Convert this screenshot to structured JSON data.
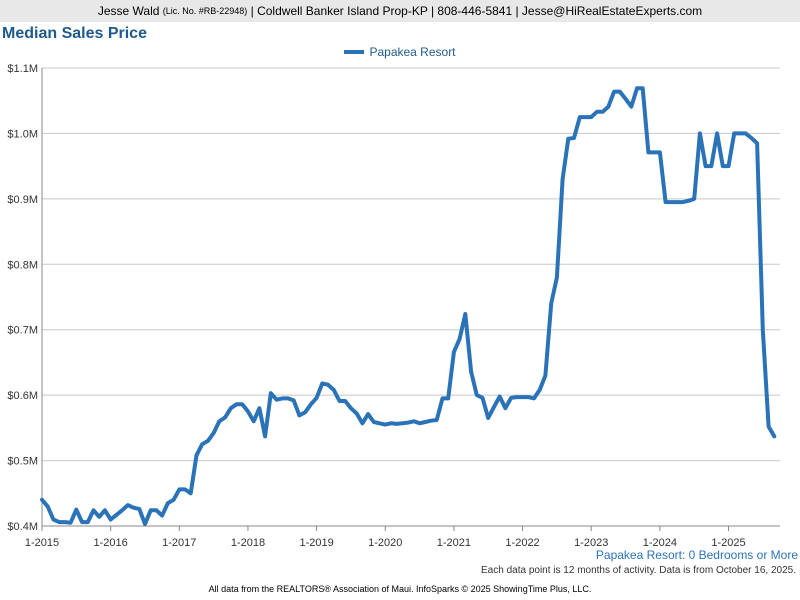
{
  "header": {
    "agent_name": "Jesse Wald",
    "license": "(Lic. No. #RB-22948)",
    "details": "| Coldwell Banker Island Prop-KP | 808-446-5841 | Jesse@HiRealEstateExperts.com"
  },
  "colors": {
    "series": "#2a73b8",
    "title": "#1f5a8c"
  },
  "chart_data": {
    "type": "line",
    "title": "Median Sales Price",
    "subtitle": "Papakea Resort: 0 Bedrooms or More",
    "legend_position": "top-center",
    "grid": true,
    "ylim": [
      400000,
      1100000
    ],
    "yticks": [
      {
        "value": 400000,
        "label": "$0.4M"
      },
      {
        "value": 500000,
        "label": "$0.5M"
      },
      {
        "value": 600000,
        "label": "$0.6M"
      },
      {
        "value": 700000,
        "label": "$0.7M"
      },
      {
        "value": 800000,
        "label": "$0.8M"
      },
      {
        "value": 900000,
        "label": "$0.9M"
      },
      {
        "value": 1000000,
        "label": "$1.0M"
      },
      {
        "value": 1100000,
        "label": "$1.1M"
      }
    ],
    "xlim": [
      "2015-01",
      "2025-10"
    ],
    "xticks": [
      "1-2015",
      "1-2016",
      "1-2017",
      "1-2018",
      "1-2019",
      "1-2020",
      "1-2021",
      "1-2022",
      "1-2023",
      "1-2024",
      "1-2025"
    ],
    "series": [
      {
        "name": "Papakea Resort",
        "points": [
          [
            "2015-01",
            440000
          ],
          [
            "2015-02",
            430000
          ],
          [
            "2015-03",
            410000
          ],
          [
            "2015-04",
            406000
          ],
          [
            "2015-05",
            406000
          ],
          [
            "2015-06",
            405000
          ],
          [
            "2015-07",
            425000
          ],
          [
            "2015-08",
            406000
          ],
          [
            "2015-09",
            406000
          ],
          [
            "2015-10",
            424000
          ],
          [
            "2015-11",
            414000
          ],
          [
            "2015-12",
            424000
          ],
          [
            "2016-01",
            410000
          ],
          [
            "2016-02",
            417000
          ],
          [
            "2016-03",
            424000
          ],
          [
            "2016-04",
            432000
          ],
          [
            "2016-05",
            428000
          ],
          [
            "2016-06",
            426000
          ],
          [
            "2016-07",
            403000
          ],
          [
            "2016-08",
            424000
          ],
          [
            "2016-09",
            424000
          ],
          [
            "2016-10",
            416000
          ],
          [
            "2016-11",
            435000
          ],
          [
            "2016-12",
            440000
          ],
          [
            "2017-01",
            456000
          ],
          [
            "2017-02",
            456000
          ],
          [
            "2017-03",
            450000
          ],
          [
            "2017-04",
            508000
          ],
          [
            "2017-05",
            525000
          ],
          [
            "2017-06",
            530000
          ],
          [
            "2017-07",
            542000
          ],
          [
            "2017-08",
            560000
          ],
          [
            "2017-09",
            566000
          ],
          [
            "2017-10",
            580000
          ],
          [
            "2017-11",
            586000
          ],
          [
            "2017-12",
            586000
          ],
          [
            "2018-01",
            575000
          ],
          [
            "2018-02",
            560000
          ],
          [
            "2018-03",
            580000
          ],
          [
            "2018-04",
            537000
          ],
          [
            "2018-05",
            603000
          ],
          [
            "2018-06",
            593000
          ],
          [
            "2018-07",
            595000
          ],
          [
            "2018-08",
            595000
          ],
          [
            "2018-09",
            592000
          ],
          [
            "2018-10",
            569000
          ],
          [
            "2018-11",
            574000
          ],
          [
            "2018-12",
            586000
          ],
          [
            "2019-01",
            596000
          ],
          [
            "2019-02",
            618000
          ],
          [
            "2019-03",
            616000
          ],
          [
            "2019-04",
            608000
          ],
          [
            "2019-05",
            591000
          ],
          [
            "2019-06",
            591000
          ],
          [
            "2019-07",
            580000
          ],
          [
            "2019-08",
            572000
          ],
          [
            "2019-09",
            557000
          ],
          [
            "2019-10",
            571000
          ],
          [
            "2019-11",
            559000
          ],
          [
            "2019-12",
            557000
          ],
          [
            "2020-01",
            555000
          ],
          [
            "2020-02",
            557000
          ],
          [
            "2020-03",
            556000
          ],
          [
            "2020-04",
            557000
          ],
          [
            "2020-05",
            558000
          ],
          [
            "2020-06",
            560000
          ],
          [
            "2020-07",
            557000
          ],
          [
            "2020-08",
            559000
          ],
          [
            "2020-09",
            561000
          ],
          [
            "2020-10",
            562000
          ],
          [
            "2020-11",
            595000
          ],
          [
            "2020-12",
            595000
          ],
          [
            "2021-01",
            666000
          ],
          [
            "2021-02",
            686000
          ],
          [
            "2021-03",
            724000
          ],
          [
            "2021-04",
            636000
          ],
          [
            "2021-05",
            600000
          ],
          [
            "2021-06",
            596000
          ],
          [
            "2021-07",
            565000
          ],
          [
            "2021-08",
            582000
          ],
          [
            "2021-09",
            598000
          ],
          [
            "2021-10",
            580000
          ],
          [
            "2021-11",
            596000
          ],
          [
            "2021-12",
            597000
          ],
          [
            "2022-01",
            597000
          ],
          [
            "2022-02",
            597000
          ],
          [
            "2022-03",
            595000
          ],
          [
            "2022-04",
            608000
          ],
          [
            "2022-05",
            630000
          ],
          [
            "2022-06",
            740000
          ],
          [
            "2022-07",
            780000
          ],
          [
            "2022-08",
            930000
          ],
          [
            "2022-09",
            992000
          ],
          [
            "2022-10",
            993000
          ],
          [
            "2022-11",
            1025000
          ],
          [
            "2022-12",
            1025000
          ],
          [
            "2023-01",
            1025000
          ],
          [
            "2023-02",
            1033000
          ],
          [
            "2023-03",
            1033000
          ],
          [
            "2023-04",
            1041000
          ],
          [
            "2023-05",
            1064000
          ],
          [
            "2023-06",
            1064000
          ],
          [
            "2023-07",
            1053000
          ],
          [
            "2023-08",
            1041000
          ],
          [
            "2023-09",
            1069000
          ],
          [
            "2023-10",
            1069000
          ],
          [
            "2023-11",
            971000
          ],
          [
            "2023-12",
            971000
          ],
          [
            "2024-01",
            971000
          ],
          [
            "2024-02",
            895000
          ],
          [
            "2024-03",
            895000
          ],
          [
            "2024-04",
            895000
          ],
          [
            "2024-05",
            895000
          ],
          [
            "2024-06",
            897000
          ],
          [
            "2024-07",
            900000
          ],
          [
            "2024-08",
            1000000
          ],
          [
            "2024-09",
            950000
          ],
          [
            "2024-10",
            950000
          ],
          [
            "2024-11",
            1000000
          ],
          [
            "2024-12",
            950000
          ],
          [
            "2025-01",
            950000
          ],
          [
            "2025-02",
            1000000
          ],
          [
            "2025-03",
            1000000
          ],
          [
            "2025-04",
            1000000
          ],
          [
            "2025-05",
            993000
          ],
          [
            "2025-06",
            985000
          ],
          [
            "2025-07",
            700000
          ],
          [
            "2025-08",
            552000
          ],
          [
            "2025-09",
            537000
          ]
        ]
      }
    ]
  },
  "notes": {
    "data_note": "Each data point is 12 months of activity. Data is from October 16, 2025.",
    "footer": "All data from the REALTORS® Association of Maui. InfoSparks © 2025 ShowingTime Plus, LLC."
  }
}
